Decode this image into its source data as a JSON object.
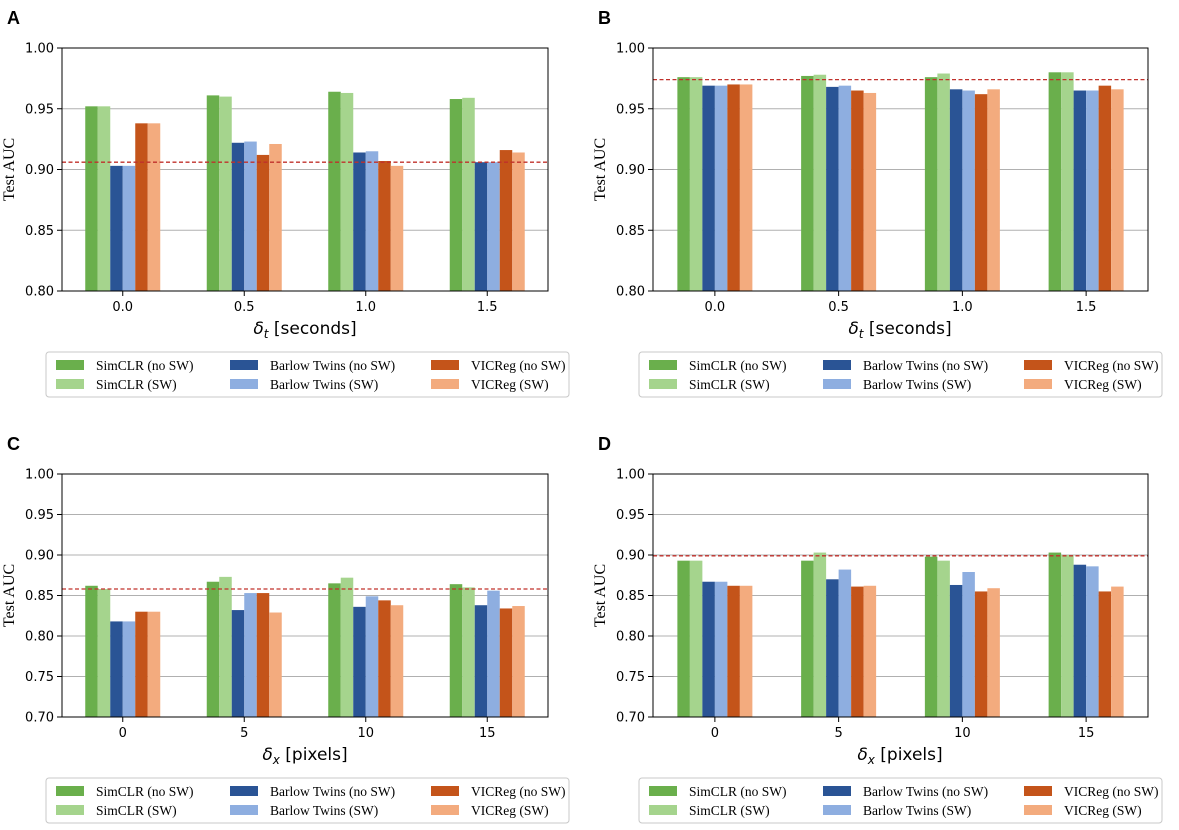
{
  "legend": [
    {
      "label": "SimCLR (no SW)",
      "color": "#6aaf4c"
    },
    {
      "label": "SimCLR (SW)",
      "color": "#a5d48d"
    },
    {
      "label": "Barlow Twins (no SW)",
      "color": "#2a5495"
    },
    {
      "label": "Barlow Twins (SW)",
      "color": "#8eaee0"
    },
    {
      "label": "VICReg (no SW)",
      "color": "#c4541a"
    },
    {
      "label": "VICReg (SW)",
      "color": "#f3ab7e"
    }
  ],
  "chart_data": [
    {
      "panel": "A",
      "type": "bar",
      "ylabel": "Test AUC",
      "xlabel_sym": "δ",
      "xlabel_sub": "t",
      "xlabel_unit": "[seconds]",
      "categories": [
        "0.0",
        "0.5",
        "1.0",
        "1.5"
      ],
      "ylim": [
        0.8,
        1.0
      ],
      "yticks": [
        "0.80",
        "0.85",
        "0.90",
        "0.95",
        "1.00"
      ],
      "baseline": 0.906,
      "series": [
        {
          "name": "SimCLR (no SW)",
          "values": [
            0.952,
            0.961,
            0.964,
            0.958
          ]
        },
        {
          "name": "SimCLR (SW)",
          "values": [
            0.952,
            0.96,
            0.963,
            0.959
          ]
        },
        {
          "name": "Barlow Twins (no SW)",
          "values": [
            0.903,
            0.922,
            0.914,
            0.906
          ]
        },
        {
          "name": "Barlow Twins (SW)",
          "values": [
            0.903,
            0.923,
            0.915,
            0.906
          ]
        },
        {
          "name": "VICReg (no SW)",
          "values": [
            0.938,
            0.912,
            0.907,
            0.916
          ]
        },
        {
          "name": "VICReg (SW)",
          "values": [
            0.938,
            0.921,
            0.903,
            0.914
          ]
        }
      ]
    },
    {
      "panel": "B",
      "type": "bar",
      "ylabel": "Test AUC",
      "xlabel_sym": "δ",
      "xlabel_sub": "t",
      "xlabel_unit": "[seconds]",
      "categories": [
        "0.0",
        "0.5",
        "1.0",
        "1.5"
      ],
      "ylim": [
        0.8,
        1.0
      ],
      "yticks": [
        "0.80",
        "0.85",
        "0.90",
        "0.95",
        "1.00"
      ],
      "baseline": 0.974,
      "series": [
        {
          "name": "SimCLR (no SW)",
          "values": [
            0.976,
            0.977,
            0.976,
            0.98
          ]
        },
        {
          "name": "SimCLR (SW)",
          "values": [
            0.976,
            0.978,
            0.979,
            0.98
          ]
        },
        {
          "name": "Barlow Twins (no SW)",
          "values": [
            0.969,
            0.968,
            0.966,
            0.965
          ]
        },
        {
          "name": "Barlow Twins (SW)",
          "values": [
            0.969,
            0.969,
            0.965,
            0.965
          ]
        },
        {
          "name": "VICReg (no SW)",
          "values": [
            0.97,
            0.965,
            0.962,
            0.969
          ]
        },
        {
          "name": "VICReg (SW)",
          "values": [
            0.97,
            0.963,
            0.966,
            0.966
          ]
        }
      ]
    },
    {
      "panel": "C",
      "type": "bar",
      "ylabel": "Test AUC",
      "xlabel_sym": "δ",
      "xlabel_sub": "x",
      "xlabel_unit": "[pixels]",
      "categories": [
        "0",
        "5",
        "10",
        "15"
      ],
      "ylim": [
        0.7,
        1.0
      ],
      "yticks": [
        "0.70",
        "0.75",
        "0.80",
        "0.85",
        "0.90",
        "0.95",
        "1.00"
      ],
      "baseline": 0.858,
      "series": [
        {
          "name": "SimCLR (no SW)",
          "values": [
            0.862,
            0.867,
            0.865,
            0.864
          ]
        },
        {
          "name": "SimCLR (SW)",
          "values": [
            0.858,
            0.873,
            0.872,
            0.86
          ]
        },
        {
          "name": "Barlow Twins (no SW)",
          "values": [
            0.818,
            0.832,
            0.836,
            0.838
          ]
        },
        {
          "name": "Barlow Twins (SW)",
          "values": [
            0.818,
            0.853,
            0.849,
            0.856
          ]
        },
        {
          "name": "VICReg (no SW)",
          "values": [
            0.83,
            0.853,
            0.844,
            0.834
          ]
        },
        {
          "name": "VICReg (SW)",
          "values": [
            0.83,
            0.829,
            0.838,
            0.837
          ]
        }
      ]
    },
    {
      "panel": "D",
      "type": "bar",
      "ylabel": "Test AUC",
      "xlabel_sym": "δ",
      "xlabel_sub": "x",
      "xlabel_unit": "[pixels]",
      "categories": [
        "0",
        "5",
        "10",
        "15"
      ],
      "ylim": [
        0.7,
        1.0
      ],
      "yticks": [
        "0.70",
        "0.75",
        "0.80",
        "0.85",
        "0.90",
        "0.95",
        "1.00"
      ],
      "baseline": 0.899,
      "series": [
        {
          "name": "SimCLR (no SW)",
          "values": [
            0.893,
            0.893,
            0.898,
            0.903
          ]
        },
        {
          "name": "SimCLR (SW)",
          "values": [
            0.893,
            0.903,
            0.893,
            0.9
          ]
        },
        {
          "name": "Barlow Twins (no SW)",
          "values": [
            0.867,
            0.87,
            0.863,
            0.888
          ]
        },
        {
          "name": "Barlow Twins (SW)",
          "values": [
            0.867,
            0.882,
            0.879,
            0.886
          ]
        },
        {
          "name": "VICReg (no SW)",
          "values": [
            0.862,
            0.861,
            0.855,
            0.855
          ]
        },
        {
          "name": "VICReg (SW)",
          "values": [
            0.862,
            0.862,
            0.859,
            0.861
          ]
        }
      ]
    }
  ]
}
